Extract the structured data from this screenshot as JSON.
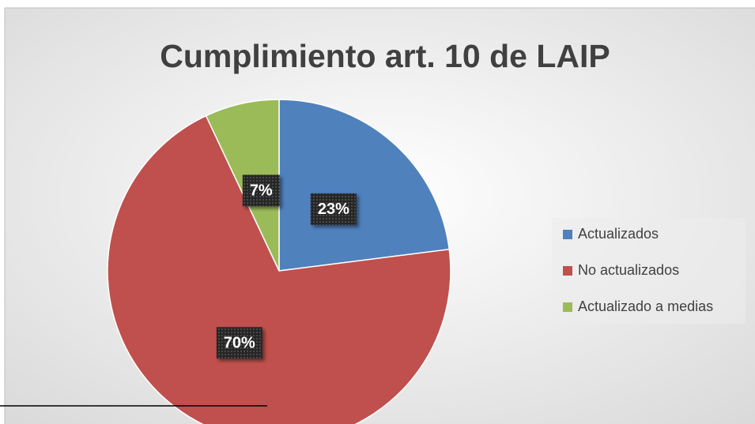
{
  "chart_data": {
    "type": "pie",
    "title": "Cumplimiento art. 10 de LAIP",
    "categories": [
      "Actualizados",
      "No actualizados",
      "Actualizado a medias"
    ],
    "values": [
      23,
      70,
      7
    ],
    "value_labels": [
      "23%",
      "70%",
      "7%"
    ],
    "colors": [
      "#4f81bd",
      "#c0504d",
      "#9bbb59"
    ],
    "legend": "right"
  }
}
